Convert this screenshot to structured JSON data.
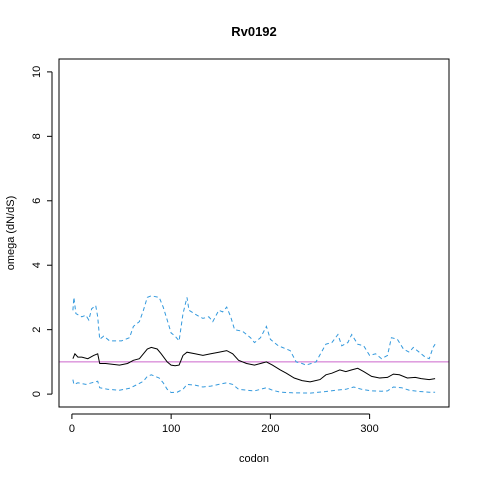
{
  "chart_data": {
    "type": "line",
    "title": "Rv0192",
    "xlabel": "codon",
    "ylabel": "omega (dN/dS)",
    "xlim": [
      -13,
      380
    ],
    "ylim": [
      -0.4,
      10.4
    ],
    "xticks": [
      0,
      100,
      200,
      300
    ],
    "yticks": [
      0,
      2,
      4,
      6,
      8,
      10
    ],
    "grid": false,
    "legend": "none",
    "reference_line": {
      "y": 1,
      "color": "#cc66cc"
    },
    "series": [
      {
        "role": "upper",
        "color": "#3399dd",
        "dash": true,
        "points": [
          [
            1,
            2.6
          ],
          [
            2,
            3.0
          ],
          [
            4,
            2.5
          ],
          [
            10,
            2.4
          ],
          [
            14,
            2.45
          ],
          [
            17,
            2.3
          ],
          [
            20,
            2.65
          ],
          [
            24,
            2.75
          ],
          [
            26,
            2.4
          ],
          [
            28,
            1.7
          ],
          [
            32,
            1.8
          ],
          [
            38,
            1.65
          ],
          [
            50,
            1.65
          ],
          [
            58,
            1.75
          ],
          [
            62,
            2.1
          ],
          [
            68,
            2.25
          ],
          [
            72,
            2.6
          ],
          [
            76,
            3.0
          ],
          [
            80,
            3.05
          ],
          [
            88,
            3.0
          ],
          [
            92,
            2.7
          ],
          [
            96,
            2.3
          ],
          [
            100,
            1.9
          ],
          [
            104,
            1.8
          ],
          [
            108,
            1.65
          ],
          [
            112,
            2.5
          ],
          [
            116,
            3.0
          ],
          [
            118,
            2.6
          ],
          [
            126,
            2.45
          ],
          [
            132,
            2.35
          ],
          [
            138,
            2.4
          ],
          [
            142,
            2.25
          ],
          [
            148,
            2.6
          ],
          [
            152,
            2.55
          ],
          [
            156,
            2.7
          ],
          [
            160,
            2.4
          ],
          [
            164,
            2.0
          ],
          [
            172,
            1.95
          ],
          [
            180,
            1.75
          ],
          [
            184,
            1.6
          ],
          [
            190,
            1.75
          ],
          [
            196,
            2.1
          ],
          [
            200,
            1.7
          ],
          [
            208,
            1.5
          ],
          [
            212,
            1.45
          ],
          [
            220,
            1.35
          ],
          [
            226,
            1.0
          ],
          [
            232,
            0.95
          ],
          [
            236,
            0.9
          ],
          [
            246,
            1.0
          ],
          [
            256,
            1.55
          ],
          [
            262,
            1.6
          ],
          [
            268,
            1.85
          ],
          [
            272,
            1.5
          ],
          [
            278,
            1.6
          ],
          [
            282,
            1.85
          ],
          [
            288,
            1.55
          ],
          [
            294,
            1.5
          ],
          [
            300,
            1.2
          ],
          [
            306,
            1.25
          ],
          [
            312,
            1.1
          ],
          [
            318,
            1.2
          ],
          [
            322,
            1.75
          ],
          [
            328,
            1.7
          ],
          [
            334,
            1.4
          ],
          [
            340,
            1.3
          ],
          [
            344,
            1.45
          ],
          [
            350,
            1.3
          ],
          [
            356,
            1.15
          ],
          [
            360,
            1.1
          ],
          [
            364,
            1.45
          ],
          [
            366,
            1.55
          ]
        ]
      },
      {
        "role": "estimate",
        "color": "#000000",
        "dash": false,
        "points": [
          [
            1,
            1.1
          ],
          [
            3,
            1.25
          ],
          [
            6,
            1.15
          ],
          [
            10,
            1.15
          ],
          [
            16,
            1.1
          ],
          [
            22,
            1.2
          ],
          [
            26,
            1.25
          ],
          [
            28,
            0.95
          ],
          [
            34,
            0.95
          ],
          [
            48,
            0.9
          ],
          [
            56,
            0.95
          ],
          [
            62,
            1.05
          ],
          [
            68,
            1.1
          ],
          [
            72,
            1.25
          ],
          [
            76,
            1.4
          ],
          [
            80,
            1.45
          ],
          [
            86,
            1.4
          ],
          [
            90,
            1.25
          ],
          [
            96,
            1.0
          ],
          [
            100,
            0.9
          ],
          [
            104,
            0.88
          ],
          [
            108,
            0.9
          ],
          [
            112,
            1.2
          ],
          [
            116,
            1.3
          ],
          [
            124,
            1.25
          ],
          [
            132,
            1.2
          ],
          [
            140,
            1.25
          ],
          [
            148,
            1.3
          ],
          [
            156,
            1.35
          ],
          [
            162,
            1.25
          ],
          [
            168,
            1.05
          ],
          [
            176,
            0.95
          ],
          [
            184,
            0.9
          ],
          [
            190,
            0.95
          ],
          [
            196,
            1.0
          ],
          [
            202,
            0.9
          ],
          [
            210,
            0.75
          ],
          [
            216,
            0.65
          ],
          [
            224,
            0.5
          ],
          [
            232,
            0.42
          ],
          [
            240,
            0.38
          ],
          [
            250,
            0.45
          ],
          [
            256,
            0.6
          ],
          [
            262,
            0.65
          ],
          [
            270,
            0.75
          ],
          [
            276,
            0.7
          ],
          [
            282,
            0.75
          ],
          [
            288,
            0.8
          ],
          [
            294,
            0.7
          ],
          [
            302,
            0.55
          ],
          [
            310,
            0.5
          ],
          [
            318,
            0.52
          ],
          [
            324,
            0.62
          ],
          [
            330,
            0.6
          ],
          [
            338,
            0.5
          ],
          [
            346,
            0.52
          ],
          [
            352,
            0.48
          ],
          [
            360,
            0.45
          ],
          [
            366,
            0.48
          ]
        ]
      },
      {
        "role": "lower",
        "color": "#3399dd",
        "dash": true,
        "points": [
          [
            1,
            0.45
          ],
          [
            2,
            0.3
          ],
          [
            6,
            0.35
          ],
          [
            14,
            0.3
          ],
          [
            20,
            0.35
          ],
          [
            26,
            0.4
          ],
          [
            28,
            0.2
          ],
          [
            36,
            0.15
          ],
          [
            48,
            0.12
          ],
          [
            58,
            0.18
          ],
          [
            66,
            0.3
          ],
          [
            72,
            0.4
          ],
          [
            76,
            0.55
          ],
          [
            80,
            0.6
          ],
          [
            88,
            0.5
          ],
          [
            92,
            0.35
          ],
          [
            96,
            0.15
          ],
          [
            100,
            0.05
          ],
          [
            106,
            0.06
          ],
          [
            112,
            0.15
          ],
          [
            116,
            0.3
          ],
          [
            124,
            0.28
          ],
          [
            132,
            0.22
          ],
          [
            140,
            0.25
          ],
          [
            148,
            0.3
          ],
          [
            156,
            0.35
          ],
          [
            162,
            0.3
          ],
          [
            168,
            0.15
          ],
          [
            176,
            0.12
          ],
          [
            184,
            0.1
          ],
          [
            190,
            0.15
          ],
          [
            196,
            0.2
          ],
          [
            202,
            0.12
          ],
          [
            210,
            0.06
          ],
          [
            222,
            0.04
          ],
          [
            240,
            0.03
          ],
          [
            256,
            0.08
          ],
          [
            266,
            0.12
          ],
          [
            276,
            0.15
          ],
          [
            284,
            0.22
          ],
          [
            292,
            0.15
          ],
          [
            302,
            0.1
          ],
          [
            312,
            0.09
          ],
          [
            318,
            0.1
          ],
          [
            324,
            0.22
          ],
          [
            332,
            0.2
          ],
          [
            340,
            0.12
          ],
          [
            350,
            0.08
          ],
          [
            360,
            0.06
          ],
          [
            366,
            0.06
          ]
        ]
      }
    ]
  }
}
